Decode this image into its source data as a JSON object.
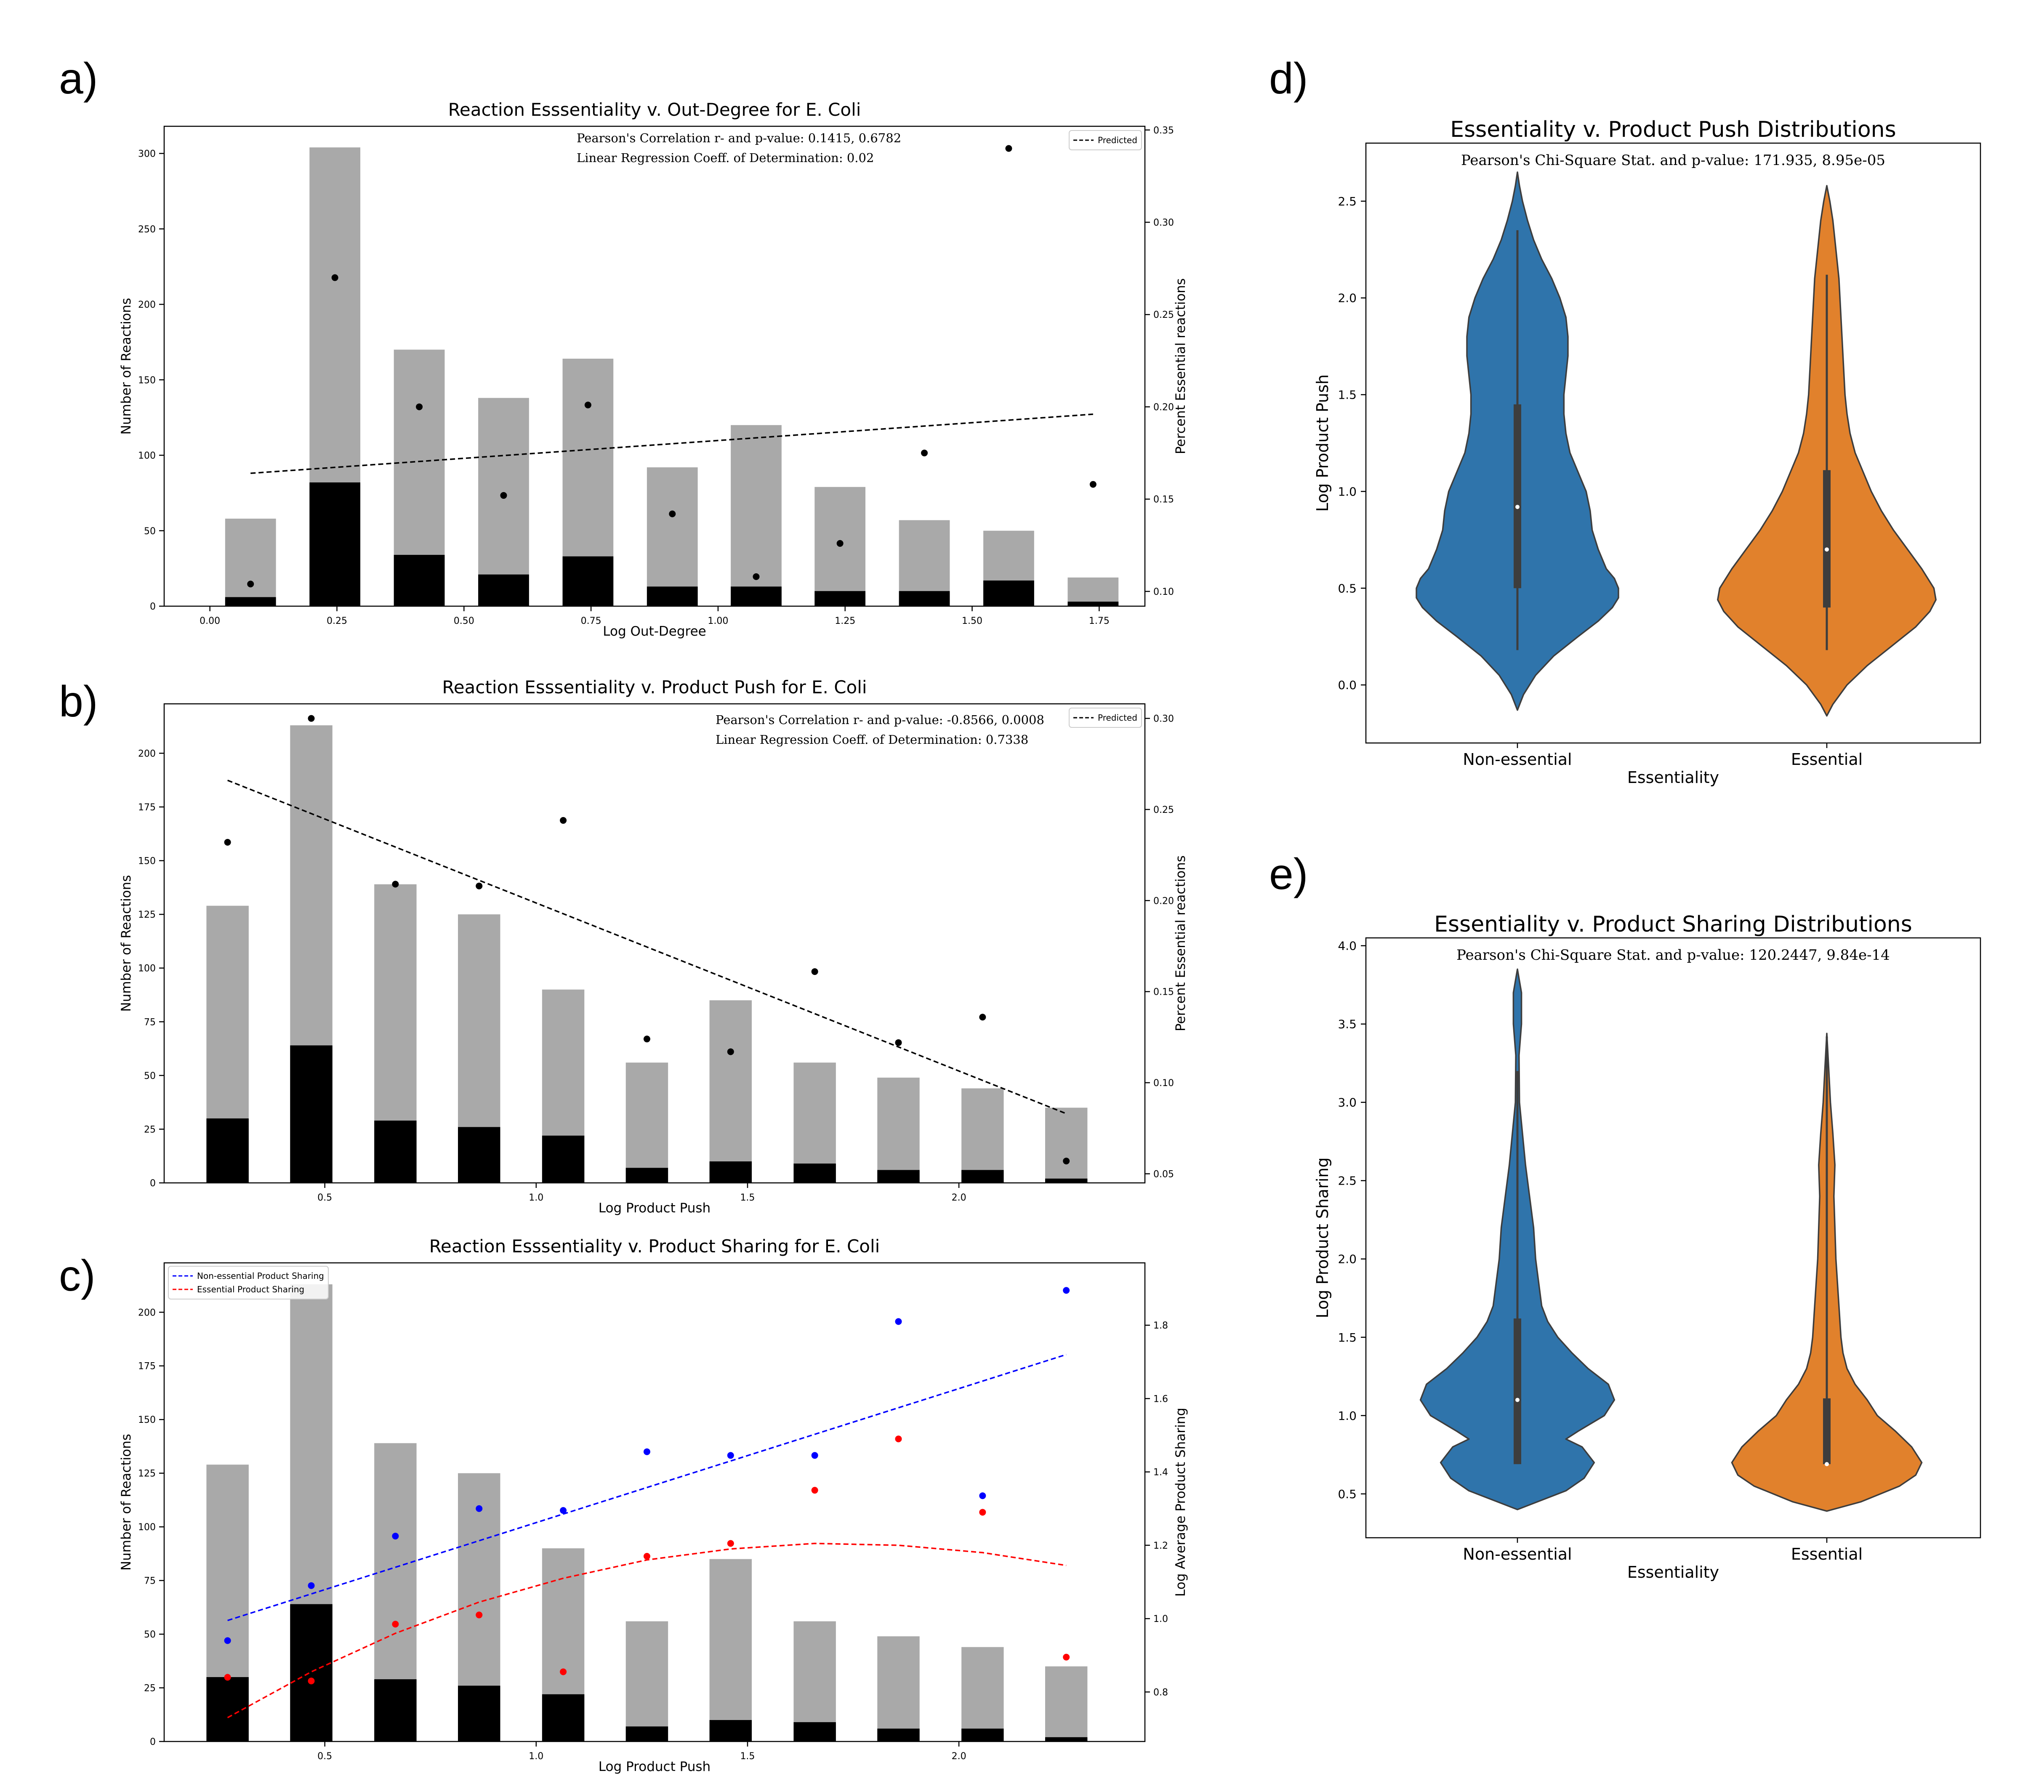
{
  "figure": {
    "panel_labels": [
      "a)",
      "b)",
      "c)",
      "d)",
      "e)"
    ]
  },
  "colors": {
    "total_bar": "#a9a9a9",
    "essential_bar": "#000000",
    "blue": "#0000ff",
    "red": "#ff0000",
    "violin_nonessential": "#2f74ab",
    "violin_essential": "#e1812c",
    "violin_edge": "#3d3d3d",
    "box": "#3d3d3d"
  },
  "chart_data": [
    {
      "type": "bar",
      "panel": "a)",
      "title": "Reaction Esssentiality v. Out-Degree for E. Coli",
      "xlabel": "Log Out-Degree",
      "ylabel": "Number of Reactions",
      "y2label": "Percent Essential reactions",
      "xlim": [
        -0.09,
        1.84
      ],
      "ylim": [
        0,
        318
      ],
      "y2lim": [
        0.092,
        0.352
      ],
      "xticks": [
        0.0,
        0.25,
        0.5,
        0.75,
        1.0,
        1.25,
        1.5,
        1.75
      ],
      "xtick_labels": [
        "0.00",
        "0.25",
        "0.50",
        "0.75",
        "1.00",
        "1.25",
        "1.50",
        "1.75"
      ],
      "yticks": [
        0,
        50,
        100,
        150,
        200,
        250,
        300
      ],
      "y2ticks": [
        0.1,
        0.15,
        0.2,
        0.25,
        0.3,
        0.35
      ],
      "y2tick_labels": [
        "0.10",
        "0.15",
        "0.20",
        "0.25",
        "0.30",
        "0.35"
      ],
      "bar_width": 0.1,
      "x": [
        0.08,
        0.246,
        0.412,
        0.578,
        0.744,
        0.91,
        1.075,
        1.24,
        1.406,
        1.572,
        1.738
      ],
      "series": [
        {
          "name": "Total reactions",
          "kind": "bar",
          "values": [
            58,
            304,
            170,
            138,
            164,
            92,
            120,
            79,
            57,
            50,
            19
          ]
        },
        {
          "name": "Essential reactions",
          "kind": "bar",
          "values": [
            6,
            82,
            34,
            21,
            33,
            13,
            13,
            10,
            10,
            17,
            3
          ]
        },
        {
          "name": "Percent essential",
          "kind": "scatter",
          "axis": "y2",
          "values": [
            0.104,
            0.27,
            0.2,
            0.152,
            0.201,
            0.142,
            0.108,
            0.126,
            0.175,
            0.34,
            0.158
          ]
        },
        {
          "name": "Predicted",
          "kind": "line",
          "axis": "y2",
          "x": [
            0.08,
            1.738
          ],
          "values": [
            0.164,
            0.196
          ]
        }
      ],
      "legend": [
        "Predicted"
      ],
      "legend_position": "top-right",
      "annotations": [
        "Pearson's Correlation r- and p-value: 0.1415, 0.6782",
        "Linear Regression Coeff. of Determination: 0.02"
      ]
    },
    {
      "type": "bar",
      "panel": "b)",
      "title": "Reaction Esssentiality v. Product Push for E. Coli",
      "xlabel": "Log Product Push",
      "ylabel": "Number of Reactions",
      "y2label": "Percent Essential reactions",
      "xlim": [
        0.12,
        2.44
      ],
      "ylim": [
        0,
        223
      ],
      "y2lim": [
        0.045,
        0.308
      ],
      "xticks": [
        0.5,
        1.0,
        1.5,
        2.0
      ],
      "xtick_labels": [
        "0.5",
        "1.0",
        "1.5",
        "2.0"
      ],
      "yticks": [
        0,
        25,
        50,
        75,
        100,
        125,
        150,
        175,
        200
      ],
      "y2ticks": [
        0.05,
        0.1,
        0.15,
        0.2,
        0.25,
        0.3
      ],
      "y2tick_labels": [
        "0.05",
        "0.10",
        "0.15",
        "0.20",
        "0.25",
        "0.30"
      ],
      "bar_width": 0.1,
      "x": [
        0.27,
        0.468,
        0.667,
        0.865,
        1.064,
        1.262,
        1.46,
        1.659,
        1.857,
        2.056,
        2.254
      ],
      "series": [
        {
          "name": "Total reactions",
          "kind": "bar",
          "values": [
            129,
            213,
            139,
            125,
            90,
            56,
            85,
            56,
            49,
            44,
            35
          ]
        },
        {
          "name": "Essential reactions",
          "kind": "bar",
          "values": [
            30,
            64,
            29,
            26,
            22,
            7,
            10,
            9,
            6,
            6,
            2
          ]
        },
        {
          "name": "Percent essential",
          "kind": "scatter",
          "axis": "y2",
          "values": [
            0.232,
            0.3,
            0.209,
            0.208,
            0.244,
            0.124,
            0.117,
            0.161,
            0.122,
            0.136,
            0.057
          ]
        },
        {
          "name": "Predicted",
          "kind": "line",
          "axis": "y2",
          "x": [
            0.27,
            2.254
          ],
          "values": [
            0.266,
            0.083
          ]
        }
      ],
      "legend": [
        "Predicted"
      ],
      "legend_position": "top-right",
      "annotations": [
        "Pearson's Correlation r- and p-value: -0.8566, 0.0008",
        "Linear Regression Coeff. of Determination: 0.7338"
      ]
    },
    {
      "type": "bar",
      "panel": "c)",
      "title": "Reaction Esssentiality v. Product Sharing for E. Coli",
      "xlabel": "Log Product Push",
      "ylabel": "Number of Reactions",
      "y2label": "Log Average Product Sharing",
      "xlim": [
        0.12,
        2.44
      ],
      "ylim": [
        0,
        223
      ],
      "y2lim": [
        0.665,
        1.97
      ],
      "xticks": [
        0.5,
        1.0,
        1.5,
        2.0
      ],
      "xtick_labels": [
        "0.5",
        "1.0",
        "1.5",
        "2.0"
      ],
      "yticks": [
        0,
        25,
        50,
        75,
        100,
        125,
        150,
        175,
        200
      ],
      "y2ticks": [
        0.8,
        1.0,
        1.2,
        1.4,
        1.6,
        1.8
      ],
      "y2tick_labels": [
        "0.8",
        "1.0",
        "1.2",
        "1.4",
        "1.6",
        "1.8"
      ],
      "bar_width": 0.1,
      "x": [
        0.27,
        0.468,
        0.667,
        0.865,
        1.064,
        1.262,
        1.46,
        1.659,
        1.857,
        2.056,
        2.254
      ],
      "series": [
        {
          "name": "Total reactions",
          "kind": "bar",
          "values": [
            129,
            213,
            139,
            125,
            90,
            56,
            85,
            56,
            49,
            44,
            35
          ]
        },
        {
          "name": "Essential reactions",
          "kind": "bar",
          "values": [
            30,
            64,
            29,
            26,
            22,
            7,
            10,
            9,
            6,
            6,
            2
          ]
        },
        {
          "name": "Non-essential mean",
          "kind": "scatter",
          "axis": "y2",
          "color": "blue",
          "values": [
            0.94,
            1.09,
            1.225,
            1.3,
            1.295,
            1.455,
            1.445,
            1.445,
            1.81,
            1.335,
            1.895
          ]
        },
        {
          "name": "Essential mean",
          "kind": "scatter",
          "axis": "y2",
          "color": "red",
          "values": [
            0.84,
            0.83,
            0.985,
            1.01,
            0.855,
            1.17,
            1.205,
            1.35,
            1.49,
            1.29,
            0.895
          ]
        },
        {
          "name": "Non-essential Product Sharing",
          "kind": "line",
          "axis": "y2",
          "color": "blue",
          "x": [
            0.27,
            2.254
          ],
          "values": [
            0.995,
            1.72
          ]
        },
        {
          "name": "Essential Product Sharing",
          "kind": "line",
          "axis": "y2",
          "color": "red",
          "fit": "quadratic",
          "x": [
            0.27,
            0.468,
            0.667,
            0.865,
            1.064,
            1.262,
            1.46,
            1.659,
            1.857,
            2.056,
            2.254
          ],
          "values": [
            0.73,
            0.855,
            0.96,
            1.045,
            1.11,
            1.16,
            1.19,
            1.205,
            1.2,
            1.18,
            1.145
          ]
        }
      ],
      "legend": [
        "Non-essential Product Sharing",
        "Essential Product Sharing"
      ],
      "legend_position": "top-left"
    },
    {
      "type": "violin",
      "panel": "d)",
      "title": "Essentiality v. Product Push Distributions",
      "xlabel": "Essentiality",
      "ylabel": "Log Product Push",
      "ylim": [
        -0.3,
        2.8
      ],
      "yticks": [
        0.0,
        0.5,
        1.0,
        1.5,
        2.0,
        2.5
      ],
      "ytick_labels": [
        "0.0",
        "0.5",
        "1.0",
        "1.5",
        "2.0",
        "2.5"
      ],
      "categories": [
        "Non-essential",
        "Essential"
      ],
      "annotation": "Pearson's Chi-Square Stat. and p-value: 171.935, 8.95e-05",
      "violins": [
        {
          "ys": [
            -0.13,
            -0.05,
            0.05,
            0.15,
            0.25,
            0.33,
            0.4,
            0.45,
            0.5,
            0.55,
            0.6,
            0.7,
            0.8,
            0.9,
            1.0,
            1.1,
            1.2,
            1.3,
            1.4,
            1.5,
            1.6,
            1.7,
            1.8,
            1.9,
            2.0,
            2.1,
            2.2,
            2.3,
            2.4,
            2.5,
            2.58,
            2.65
          ],
          "halfwidths": [
            0.0,
            0.03,
            0.09,
            0.18,
            0.3,
            0.4,
            0.47,
            0.5,
            0.5,
            0.48,
            0.44,
            0.4,
            0.37,
            0.36,
            0.34,
            0.3,
            0.26,
            0.24,
            0.23,
            0.23,
            0.24,
            0.25,
            0.25,
            0.24,
            0.21,
            0.17,
            0.12,
            0.08,
            0.05,
            0.025,
            0.01,
            0.0
          ],
          "whisker": [
            0.18,
            2.35
          ],
          "q1": 0.5,
          "q3": 1.45,
          "median": 0.92
        },
        {
          "ys": [
            -0.16,
            -0.1,
            0.0,
            0.1,
            0.2,
            0.3,
            0.38,
            0.44,
            0.5,
            0.6,
            0.7,
            0.8,
            0.9,
            1.0,
            1.1,
            1.2,
            1.3,
            1.4,
            1.5,
            1.6,
            1.7,
            1.8,
            1.9,
            2.0,
            2.1,
            2.2,
            2.3,
            2.4,
            2.5,
            2.58
          ],
          "halfwidths": [
            0.0,
            0.03,
            0.1,
            0.2,
            0.32,
            0.44,
            0.51,
            0.54,
            0.53,
            0.47,
            0.4,
            0.33,
            0.27,
            0.22,
            0.18,
            0.14,
            0.115,
            0.1,
            0.09,
            0.085,
            0.08,
            0.075,
            0.07,
            0.065,
            0.06,
            0.05,
            0.04,
            0.03,
            0.015,
            0.0
          ],
          "whisker": [
            0.18,
            2.12
          ],
          "q1": 0.4,
          "q3": 1.11,
          "median": 0.7
        }
      ]
    },
    {
      "type": "violin",
      "panel": "e)",
      "title": "Essentiality v. Product Sharing Distributions",
      "xlabel": "Essentiality",
      "ylabel": "Log Product Sharing",
      "ylim": [
        0.22,
        4.05
      ],
      "yticks": [
        0.5,
        1.0,
        1.5,
        2.0,
        2.5,
        3.0,
        3.5,
        4.0
      ],
      "ytick_labels": [
        "0.5",
        "1.0",
        "1.5",
        "2.0",
        "2.5",
        "3.0",
        "3.5",
        "4.0"
      ],
      "categories": [
        "Non-essential",
        "Essential"
      ],
      "annotation": "Pearson's Chi-Square Stat. and p-value: 120.2447, 9.84e-14",
      "violins": [
        {
          "ys": [
            0.4,
            0.45,
            0.52,
            0.6,
            0.7,
            0.8,
            0.85,
            0.9,
            1.0,
            1.1,
            1.2,
            1.3,
            1.4,
            1.5,
            1.6,
            1.7,
            1.8,
            1.9,
            2.0,
            2.2,
            2.4,
            2.6,
            2.8,
            3.0,
            3.3,
            3.5,
            3.7,
            3.85
          ],
          "halfwidths": [
            0.0,
            0.1,
            0.24,
            0.33,
            0.38,
            0.32,
            0.24,
            0.3,
            0.43,
            0.48,
            0.45,
            0.35,
            0.27,
            0.2,
            0.15,
            0.12,
            0.11,
            0.1,
            0.09,
            0.08,
            0.06,
            0.04,
            0.025,
            0.01,
            0.008,
            0.02,
            0.02,
            0.0
          ],
          "whisker": [
            0.69,
            3.2
          ],
          "q1": 0.69,
          "q3": 1.62,
          "median": 1.1
        },
        {
          "ys": [
            0.39,
            0.45,
            0.55,
            0.62,
            0.7,
            0.8,
            0.9,
            1.0,
            1.1,
            1.2,
            1.3,
            1.4,
            1.5,
            1.6,
            1.7,
            1.8,
            1.9,
            2.0,
            2.2,
            2.4,
            2.6,
            2.8,
            3.0,
            3.2,
            3.44
          ],
          "halfwidths": [
            0.0,
            0.17,
            0.36,
            0.44,
            0.47,
            0.42,
            0.34,
            0.25,
            0.2,
            0.14,
            0.1,
            0.08,
            0.07,
            0.065,
            0.06,
            0.055,
            0.05,
            0.045,
            0.04,
            0.035,
            0.04,
            0.03,
            0.018,
            0.01,
            0.0
          ],
          "whisker": [
            0.69,
            3.42
          ],
          "q1": 0.69,
          "q3": 1.11,
          "median": 0.69
        }
      ]
    }
  ]
}
